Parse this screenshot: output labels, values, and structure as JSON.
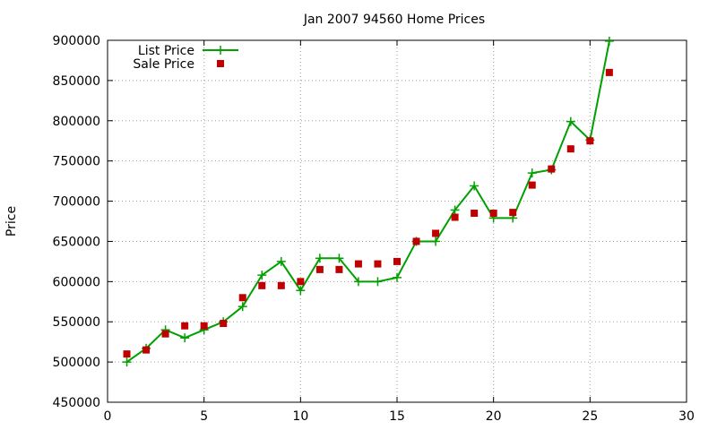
{
  "chart_data": {
    "type": "line",
    "title": "Jan 2007 94560 Home Prices",
    "xlabel": "",
    "ylabel": "Price",
    "xlim": [
      0,
      30
    ],
    "ylim": [
      450000,
      900000
    ],
    "xticks": [
      0,
      5,
      10,
      15,
      20,
      25,
      30
    ],
    "yticks": [
      450000,
      500000,
      550000,
      600000,
      650000,
      700000,
      750000,
      800000,
      850000,
      900000
    ],
    "grid": true,
    "legend_position": "top-left",
    "series": [
      {
        "name": "List Price",
        "style": "linespoints",
        "marker": "plus",
        "color": "#00a000",
        "x": [
          1,
          2,
          3,
          4,
          5,
          6,
          7,
          8,
          9,
          10,
          11,
          12,
          13,
          14,
          15,
          16,
          17,
          18,
          19,
          20,
          21,
          22,
          23,
          24,
          25,
          26
        ],
        "values": [
          500000,
          517000,
          540000,
          530000,
          540000,
          550000,
          569000,
          608000,
          625000,
          589000,
          629000,
          629000,
          600000,
          600000,
          605000,
          650000,
          650000,
          689000,
          719000,
          679000,
          679000,
          735000,
          739000,
          799000,
          776000,
          899000
        ]
      },
      {
        "name": "Sale Price",
        "style": "points",
        "marker": "square",
        "color": "#c00000",
        "x": [
          1,
          2,
          3,
          4,
          5,
          6,
          7,
          8,
          9,
          10,
          11,
          12,
          13,
          14,
          15,
          16,
          17,
          18,
          19,
          20,
          21,
          22,
          23,
          24,
          25,
          26
        ],
        "values": [
          510000,
          515000,
          535000,
          545000,
          545000,
          548000,
          580000,
          595000,
          595000,
          600000,
          615000,
          615000,
          622000,
          622000,
          625000,
          650000,
          660000,
          680000,
          685000,
          685000,
          686000,
          720000,
          740000,
          765000,
          775000,
          860000
        ]
      }
    ]
  }
}
